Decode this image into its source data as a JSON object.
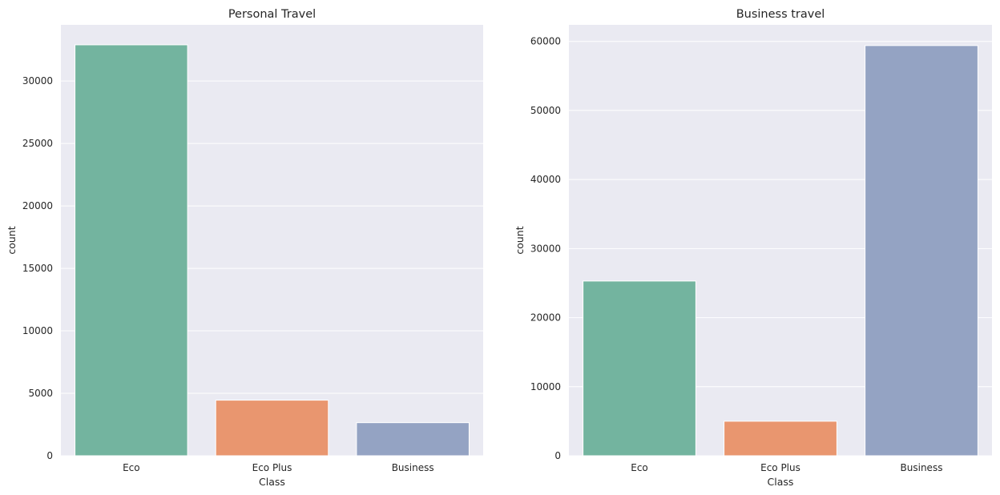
{
  "figure": {
    "panel_bg": "#eaeaf2",
    "grid_color": "#ffffff",
    "text_color": "#262626"
  },
  "chart_data": [
    {
      "type": "bar",
      "title": "Personal Travel",
      "xlabel": "Class",
      "ylabel": "count",
      "categories": [
        "Eco",
        "Eco Plus",
        "Business"
      ],
      "values": [
        32900,
        4450,
        2650
      ],
      "colors": [
        "#73b49f",
        "#e9966f",
        "#94a3c3"
      ],
      "ylim": [
        0,
        34500
      ],
      "yticks": [
        0,
        5000,
        10000,
        15000,
        20000,
        25000,
        30000
      ],
      "ytick_labels": [
        "0",
        "5000",
        "10000",
        "15000",
        "20000",
        "25000",
        "30000"
      ],
      "grid": true,
      "legend": "none"
    },
    {
      "type": "bar",
      "title": "Business travel",
      "xlabel": "Class",
      "ylabel": "count",
      "categories": [
        "Eco",
        "Eco Plus",
        "Business"
      ],
      "values": [
        25300,
        5000,
        59400
      ],
      "colors": [
        "#73b49f",
        "#e9966f",
        "#94a3c3"
      ],
      "ylim": [
        0,
        62400
      ],
      "yticks": [
        0,
        10000,
        20000,
        30000,
        40000,
        50000,
        60000
      ],
      "ytick_labels": [
        "0",
        "10000",
        "20000",
        "30000",
        "40000",
        "50000",
        "60000"
      ],
      "grid": true,
      "legend": "none"
    }
  ]
}
